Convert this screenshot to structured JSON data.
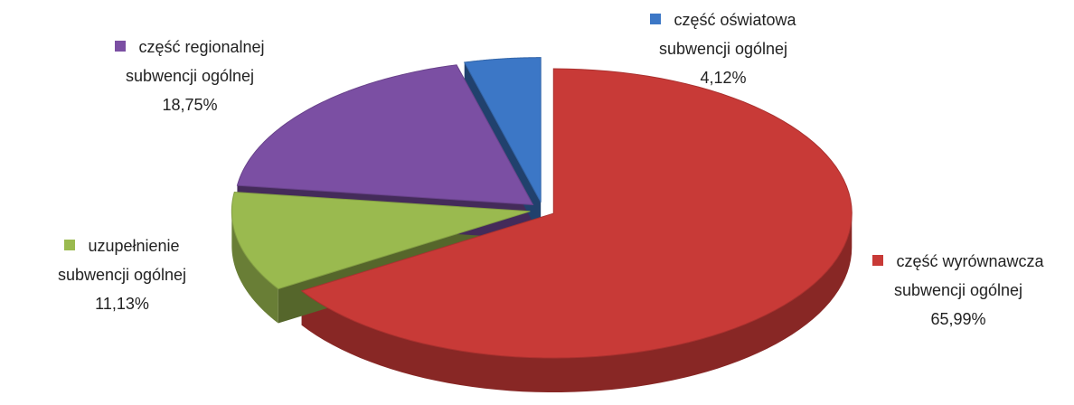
{
  "chart_data": {
    "type": "pie",
    "categories": [
      "część wyrównawcza subwencji ogólnej",
      "uzupełnienie subwencji ogólnej",
      "część regionalnej subwencji ogólnej",
      "część oświatowa subwencji ogólnej"
    ],
    "values": [
      65.99,
      11.13,
      18.75,
      4.12
    ],
    "value_labels": [
      "65,99%",
      "11,13%",
      "18,75%",
      "4,12%"
    ],
    "colors": [
      "#c83a37",
      "#9aba4f",
      "#7b4fa3",
      "#3c77c6"
    ]
  }
}
